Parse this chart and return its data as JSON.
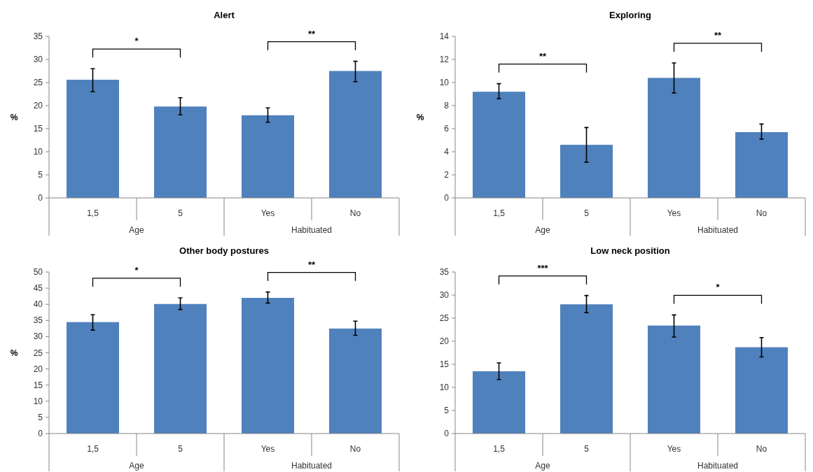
{
  "chart_data": [
    {
      "type": "bar",
      "title": "Alert",
      "ylabel": "%",
      "categories": [
        "1,5",
        "5",
        "Yes",
        "No"
      ],
      "color": "#4f81bd",
      "values": [
        25.6,
        19.8,
        17.9,
        27.5
      ],
      "errors": [
        [
          23,
          28
        ],
        [
          18,
          21.7
        ],
        [
          16.4,
          19.5
        ],
        [
          25.2,
          29.6
        ]
      ],
      "ylim": [
        0,
        35
      ],
      "yticks": [
        0,
        5,
        10,
        15,
        20,
        25,
        30,
        35
      ],
      "grid": false,
      "annotations": [
        "*",
        "**",
        "Age",
        "Habituated"
      ]
    },
    {
      "type": "bar",
      "title": "Exploring",
      "ylabel": "%",
      "categories": [
        "1,5",
        "5",
        "Yes",
        "No"
      ],
      "color": "#4f81bd",
      "values": [
        9.2,
        4.6,
        10.4,
        5.7
      ],
      "errors": [
        [
          8.6,
          9.9
        ],
        [
          3.1,
          6.1
        ],
        [
          9.1,
          11.7
        ],
        [
          5.1,
          6.4
        ]
      ],
      "ylim": [
        0,
        14
      ],
      "yticks": [
        0,
        2,
        4,
        6,
        8,
        10,
        12,
        14
      ],
      "grid": false,
      "annotations": [
        "**",
        "**",
        "Age",
        "Habituated"
      ]
    },
    {
      "type": "bar",
      "title": "Other body postures",
      "ylabel": "%",
      "categories": [
        "1,5",
        "5",
        "Yes",
        "No"
      ],
      "color": "#4f81bd",
      "values": [
        34.5,
        40.1,
        42,
        32.5
      ],
      "errors": [
        [
          32,
          36.8
        ],
        [
          38.4,
          42
        ],
        [
          40.4,
          43.8
        ],
        [
          30.4,
          34.8
        ]
      ],
      "ylim": [
        0,
        50
      ],
      "yticks": [
        0,
        5,
        10,
        15,
        20,
        25,
        30,
        35,
        40,
        45,
        50
      ],
      "grid": false,
      "annotations": [
        "*",
        "**",
        "Age",
        "Habituated"
      ]
    },
    {
      "type": "bar",
      "title": "Low neck position",
      "categories": [
        "1,5",
        "5",
        "Yes",
        "No"
      ],
      "color": "#4f81bd",
      "values": [
        13.5,
        28,
        23.4,
        18.7
      ],
      "errors": [
        [
          11.7,
          15.3
        ],
        [
          26.2,
          29.9
        ],
        [
          20.9,
          25.7
        ],
        [
          16.6,
          20.8
        ]
      ],
      "ylim": [
        0,
        35
      ],
      "yticks": [
        0,
        5,
        10,
        15,
        20,
        25,
        30,
        35
      ],
      "grid": false,
      "annotations": [
        "***",
        "*",
        "Age",
        "Habituated"
      ]
    }
  ]
}
